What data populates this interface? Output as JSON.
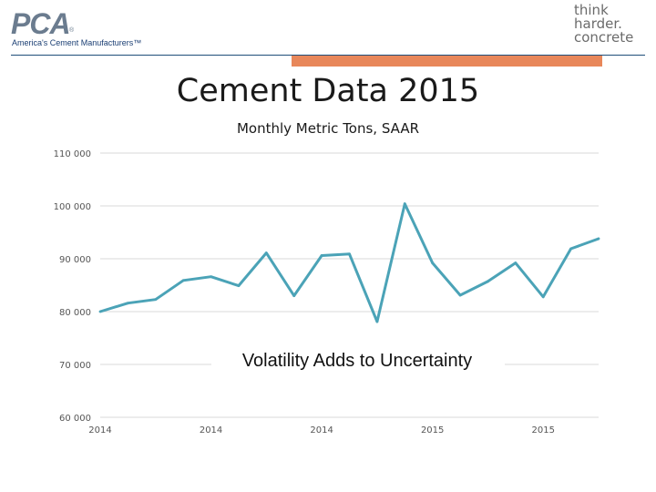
{
  "header": {
    "left_logo": {
      "text": "PCA",
      "tagline": "America's Cement Manufacturers™",
      "reg": "®"
    },
    "right_logo": {
      "lines": [
        "think",
        "harder.",
        "concrete"
      ]
    },
    "colors": {
      "rule": "#1f4e79",
      "accent_bar": "#e8875a"
    }
  },
  "slide": {
    "title": "Cement Data 2015"
  },
  "chart_data": {
    "type": "line",
    "title": "Monthly Metric Tons, SAAR",
    "xlabel": "",
    "ylabel": "",
    "ylim": [
      60000,
      110000
    ],
    "yticks": [
      60000,
      70000,
      80000,
      90000,
      100000,
      110000
    ],
    "ytick_labels": [
      "60 000",
      "70 000",
      "80 000",
      "90 000",
      "100 000",
      "110 000"
    ],
    "xtick_labels": [
      "2014",
      "2014",
      "2014",
      "2015",
      "2015"
    ],
    "xtick_positions": [
      0,
      4,
      8,
      12,
      16
    ],
    "grid": true,
    "line_color": "#4ba3b7",
    "series": [
      {
        "values": [
          80000,
          81600,
          82300,
          85900,
          86600,
          84900,
          91100,
          83000,
          90600,
          90900,
          78100,
          100400,
          89200,
          83100,
          85700,
          89200,
          82800,
          91900,
          93800
        ]
      }
    ],
    "annotation": "Volatility Adds to Uncertainty"
  }
}
